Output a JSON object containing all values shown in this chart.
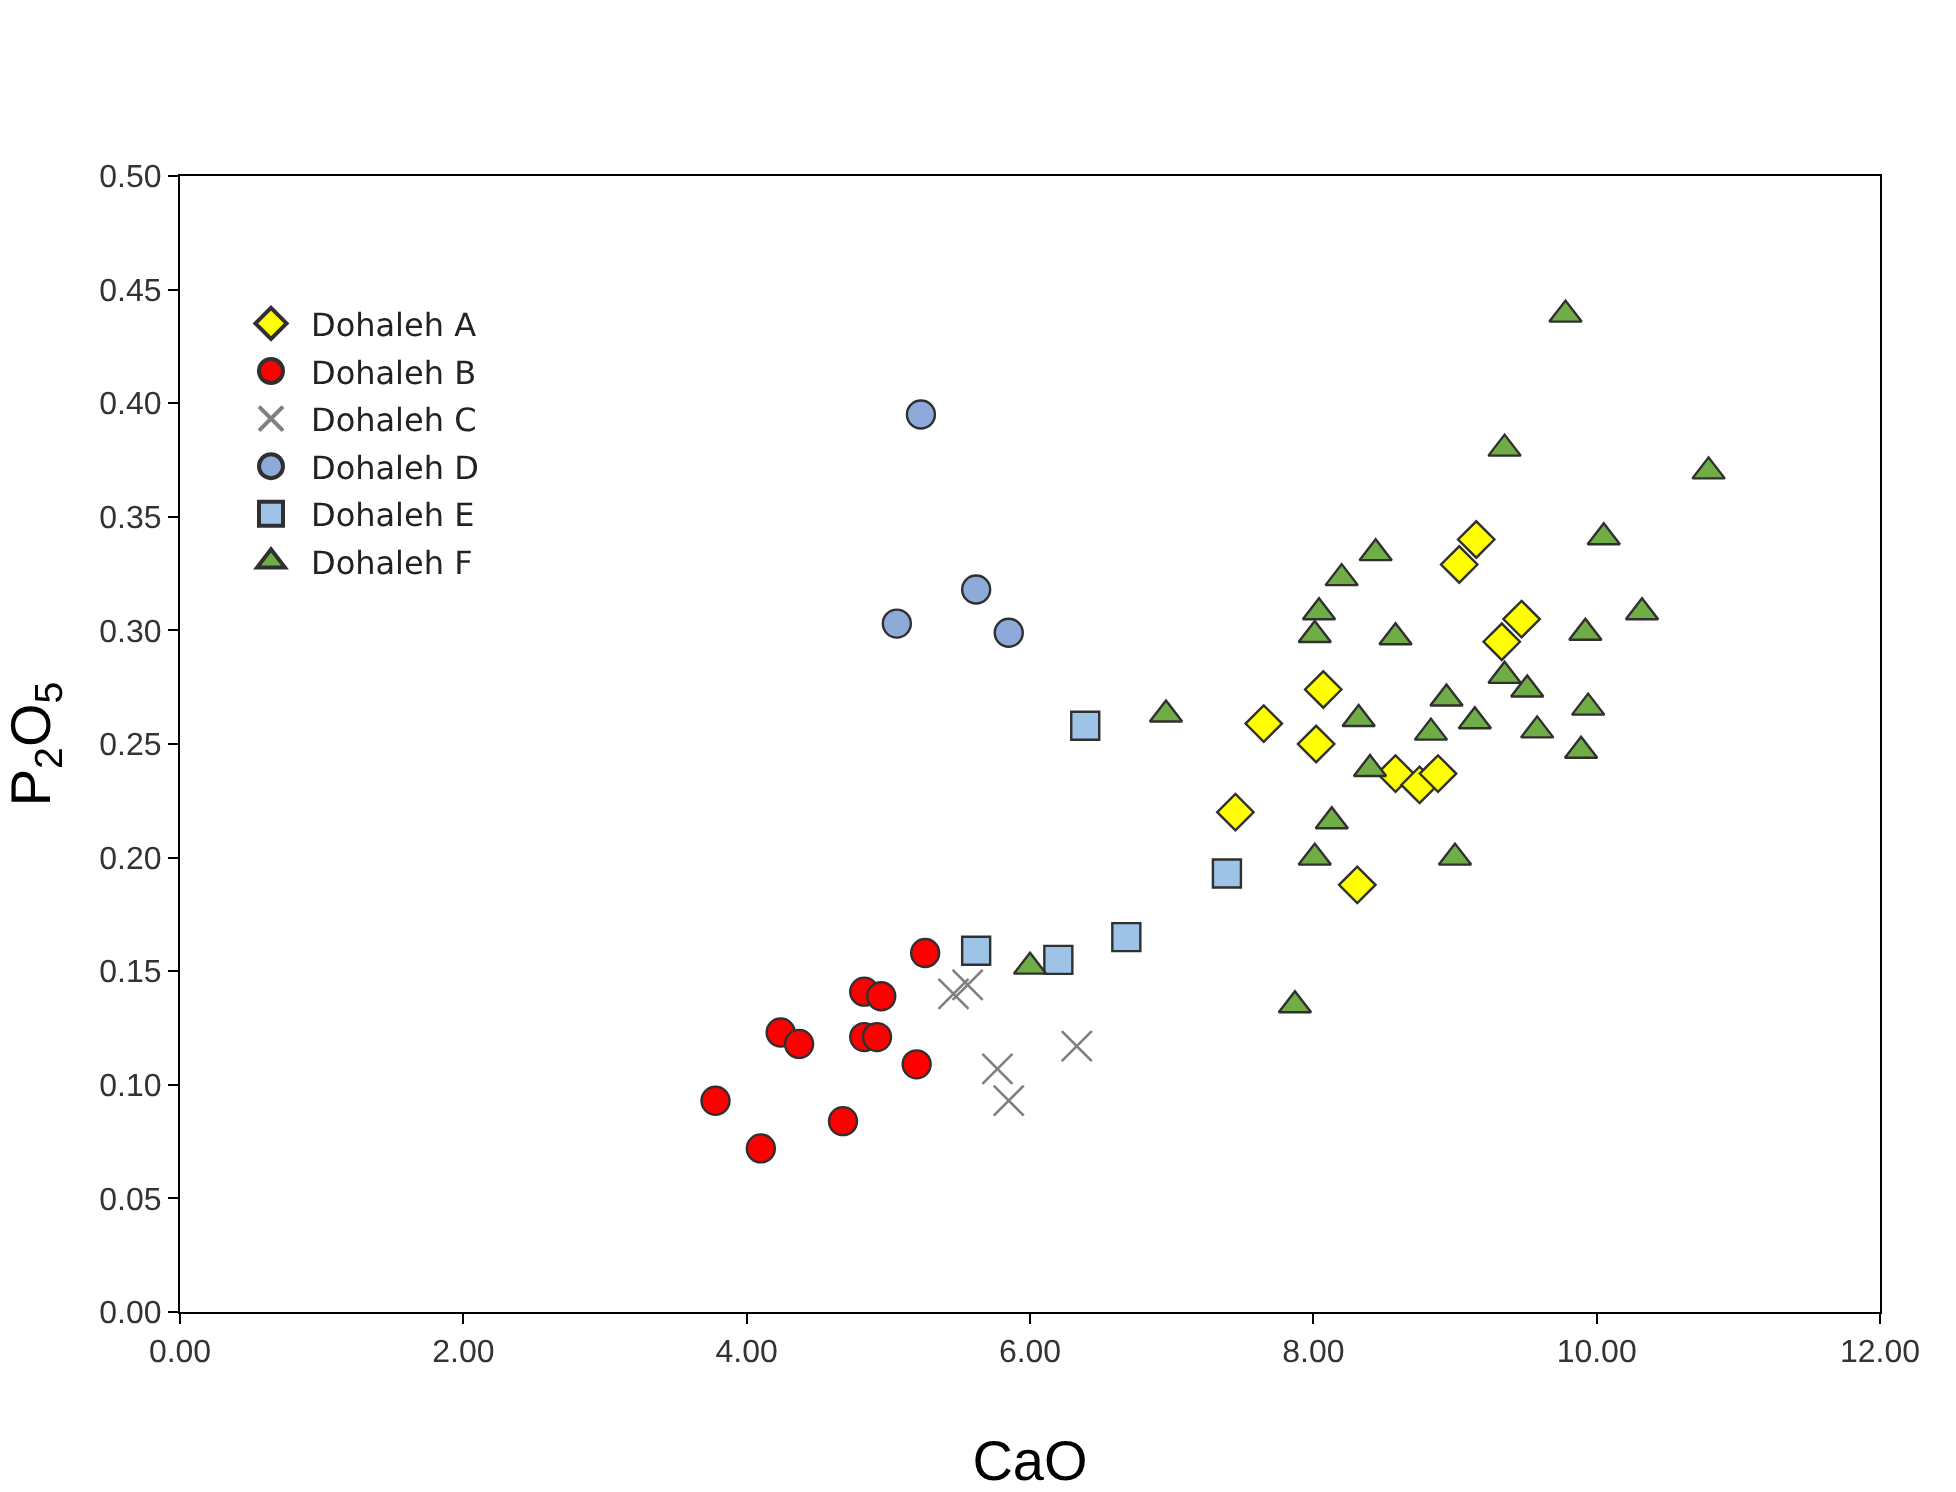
{
  "chart_data": {
    "type": "scatter",
    "xlabel": "CaO",
    "ylabel": "P$_{2}$O$_{5}$",
    "xlim": [
      0,
      12
    ],
    "ylim": [
      0,
      0.5
    ],
    "xticks": [
      {
        "value": 0,
        "label": "0.00"
      },
      {
        "value": 2,
        "label": "2.00"
      },
      {
        "value": 4,
        "label": "4.00"
      },
      {
        "value": 6,
        "label": "6.00"
      },
      {
        "value": 8,
        "label": "8.00"
      },
      {
        "value": 10,
        "label": "10.00"
      },
      {
        "value": 12,
        "label": "12.00"
      }
    ],
    "yticks": [
      {
        "value": 0,
        "label": "0.00"
      },
      {
        "value": 0.05,
        "label": "0.05"
      },
      {
        "value": 0.1,
        "label": "0.10"
      },
      {
        "value": 0.15,
        "label": "0.15"
      },
      {
        "value": 0.2,
        "label": "0.20"
      },
      {
        "value": 0.25,
        "label": "0.25"
      },
      {
        "value": 0.3,
        "label": "0.30"
      },
      {
        "value": 0.35,
        "label": "0.35"
      },
      {
        "value": 0.4,
        "label": "0.40"
      },
      {
        "value": 0.45,
        "label": "0.45"
      },
      {
        "value": 0.5,
        "label": "0.50"
      }
    ],
    "grid": false,
    "legend": "top left",
    "series": [
      {
        "name": "Dohaleh A",
        "color": "#ffff00",
        "marker": "diamond",
        "x": [
          7.45,
          7.65,
          8.07,
          8.02,
          8.58,
          8.75,
          8.88,
          8.31,
          9.03,
          9.15,
          9.37,
          9.47,
          9.33
        ],
        "values": [
          0.22,
          0.259,
          0.274,
          0.25,
          0.237,
          0.232,
          0.237,
          0.188,
          0.329,
          0.34,
          null,
          0.305,
          0.295
        ]
      },
      {
        "name": "Dohaleh B",
        "color": "#ff0000",
        "marker": "circle",
        "x": [
          3.78,
          4.1,
          4.24,
          4.37,
          4.63,
          4.68,
          4.83,
          4.95,
          4.83,
          4.92,
          5.2,
          5.26
        ],
        "values": [
          0.093,
          0.072,
          0.123,
          0.118,
          null,
          0.084,
          0.141,
          0.139,
          0.121,
          0.121,
          0.109,
          0.158
        ]
      },
      {
        "name": "Dohaleh C",
        "color": "#7f7f7f",
        "marker": "cross",
        "x": [
          5.46,
          5.56,
          5.77,
          5.85,
          6.33
        ],
        "values": [
          0.14,
          0.144,
          0.107,
          0.093,
          0.117
        ]
      },
      {
        "name": "Dohaleh D",
        "color": "#8eaadb",
        "marker": "circle",
        "x": [
          5.23,
          5.06,
          5.62,
          5.85
        ],
        "values": [
          0.395,
          0.303,
          0.318,
          0.299
        ]
      },
      {
        "name": "Dohaleh E",
        "color": "#9dc3e6",
        "marker": "square",
        "x": [
          6.39,
          5.62,
          6.2,
          6.68,
          7.39
        ],
        "values": [
          0.258,
          0.159,
          0.155,
          0.165,
          0.193
        ]
      },
      {
        "name": "Dohaleh F",
        "color": "#70ad47",
        "marker": "triangle",
        "x": [
          9.78,
          9.35,
          10.79,
          10.05,
          8.44,
          8.2,
          8.04,
          8.01,
          8.58,
          10.32,
          9.92,
          6.96,
          8.32,
          8.94,
          8.83,
          9.14,
          9.35,
          9.51,
          9.58,
          9.94,
          9.89,
          8.4,
          8.13,
          8.01,
          9.0,
          7.87,
          6.0
        ],
        "values": [
          0.439,
          0.38,
          0.37,
          0.341,
          0.334,
          0.323,
          0.308,
          0.298,
          0.297,
          0.308,
          0.299,
          0.263,
          0.261,
          0.27,
          0.255,
          0.26,
          0.28,
          0.274,
          0.256,
          0.266,
          0.247,
          0.239,
          0.216,
          0.2,
          0.2,
          0.135,
          0.152
        ]
      }
    ]
  }
}
